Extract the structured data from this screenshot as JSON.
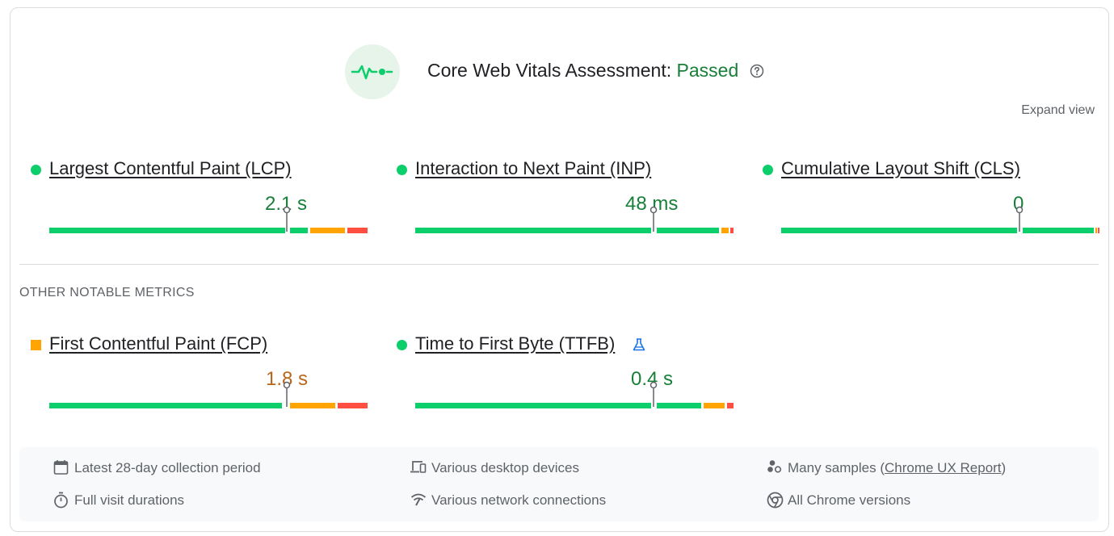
{
  "assessment": {
    "label": "Core Web Vitals Assessment:",
    "status": "Passed",
    "expand": "Expand view"
  },
  "core_metrics": [
    {
      "name": "Largest Contentful Paint (LCP)",
      "value": "2.1 s",
      "rating": "good"
    },
    {
      "name": "Interaction to Next Paint (INP)",
      "value": "48 ms",
      "rating": "good"
    },
    {
      "name": "Cumulative Layout Shift (CLS)",
      "value": "0",
      "rating": "good"
    }
  ],
  "other": {
    "title": "OTHER NOTABLE METRICS",
    "metrics": [
      {
        "name": "First Contentful Paint (FCP)",
        "value": "1.8 s",
        "rating": "needs-improvement"
      },
      {
        "name": "Time to First Byte (TTFB)",
        "value": "0.4 s",
        "rating": "good",
        "experimental": true
      }
    ]
  },
  "info": {
    "period": "Latest 28-day collection period",
    "devices": "Various desktop devices",
    "samples_prefix": "Many samples (",
    "samples_link": "Chrome UX Report",
    "samples_suffix": ")",
    "durations": "Full visit durations",
    "network": "Various network connections",
    "versions": "All Chrome versions"
  },
  "colors": {
    "good": "#0cce6b",
    "average": "#ffa400",
    "poor": "#ff4e42",
    "pass_text": "#188038"
  }
}
